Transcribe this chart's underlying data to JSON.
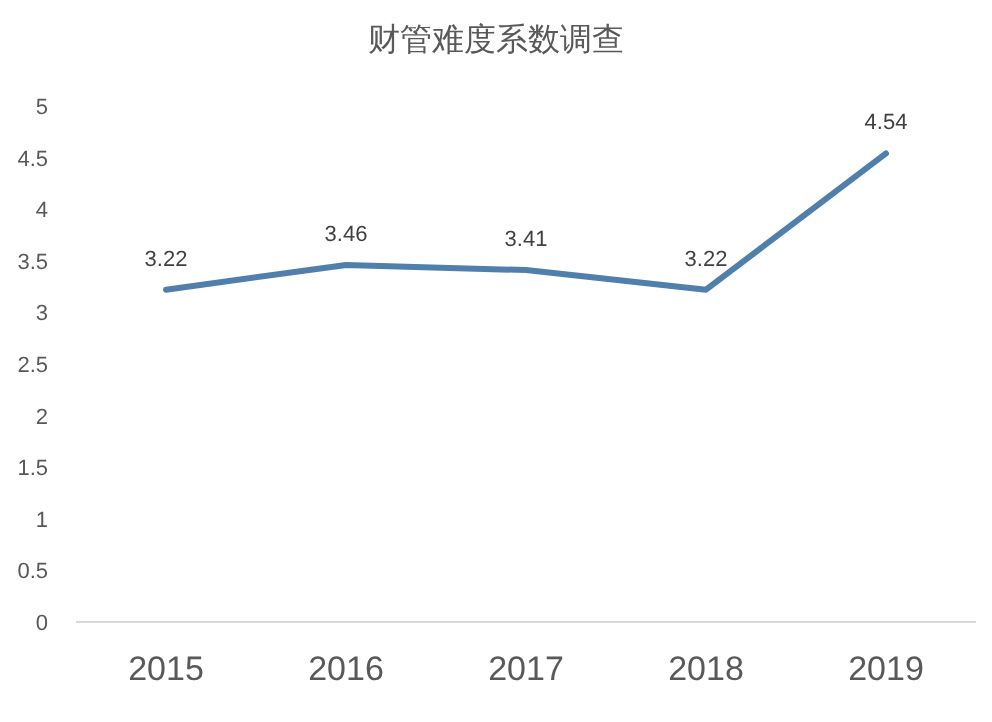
{
  "chart_data": {
    "type": "line",
    "title": "财管难度系数调查",
    "categories": [
      "2015",
      "2016",
      "2017",
      "2018",
      "2019"
    ],
    "series": [
      {
        "color": "#4f7faa",
        "values": [
          3.22,
          3.46,
          3.41,
          3.22,
          4.54
        ]
      }
    ],
    "ylim": [
      0,
      5
    ],
    "yticks": [
      0,
      0.5,
      1,
      1.5,
      2,
      2.5,
      3,
      3.5,
      4,
      4.5,
      5
    ],
    "grid": false,
    "marker": "none",
    "line_style": "solid",
    "data_labels": true
  }
}
